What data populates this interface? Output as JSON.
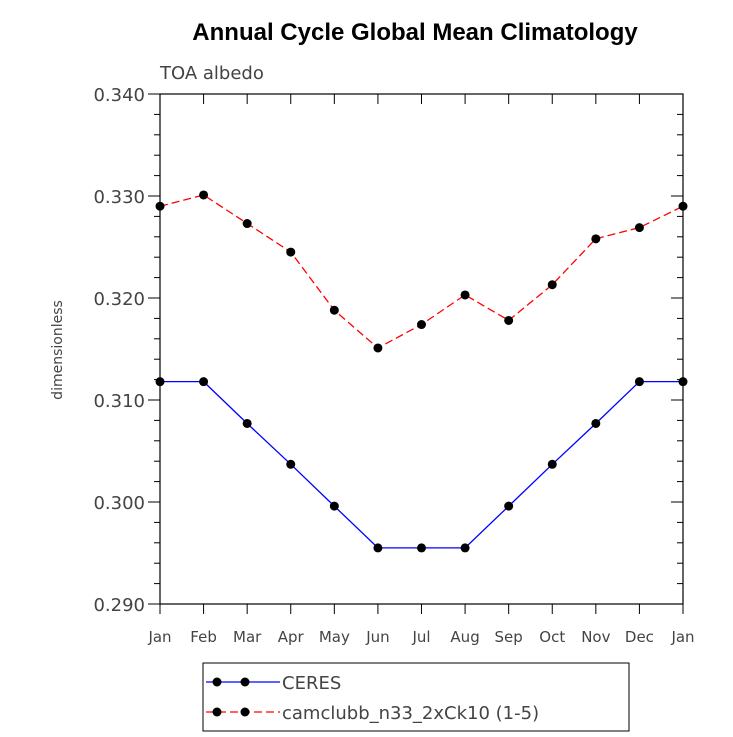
{
  "chart_data": {
    "type": "line",
    "title": "Annual Cycle Global Mean Climatology",
    "subtitle": "TOA albedo",
    "xlabel": "",
    "ylabel": "dimensionless",
    "categories": [
      "Jan",
      "Feb",
      "Mar",
      "Apr",
      "May",
      "Jun",
      "Jul",
      "Aug",
      "Sep",
      "Oct",
      "Nov",
      "Dec",
      "Jan"
    ],
    "ylim": [
      0.29,
      0.34
    ],
    "yticks": [
      "0.290",
      "0.300",
      "0.310",
      "0.320",
      "0.330",
      "0.340"
    ],
    "grid": false,
    "legend_position": "bottom-center",
    "series": [
      {
        "name": "CERES",
        "color": "#0000ff",
        "line_style": "solid",
        "marker": "filled-circle",
        "values": [
          0.3118,
          0.3118,
          0.3077,
          0.3037,
          0.2996,
          0.2955,
          0.2955,
          0.2955,
          0.2996,
          0.3037,
          0.3077,
          0.3118,
          0.3118
        ]
      },
      {
        "name": "camclubb_n33_2xCk10 (1-5)",
        "color": "#ff0000",
        "line_style": "dashed",
        "marker": "filled-circle",
        "values": [
          0.329,
          0.3301,
          0.3273,
          0.3245,
          0.3188,
          0.3151,
          0.3174,
          0.3203,
          0.3178,
          0.3213,
          0.3258,
          0.3269,
          0.329
        ]
      }
    ]
  }
}
